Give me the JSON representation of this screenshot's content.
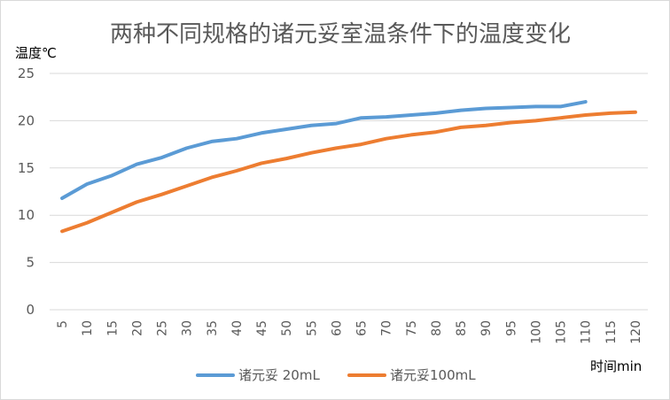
{
  "chart_data": {
    "type": "line",
    "title": "两种不同规格的诸元妥室温条件下的温度变化",
    "ylabel": "温度℃",
    "xlabel": "时间min",
    "ylim": [
      0,
      25
    ],
    "yticks": [
      0,
      5,
      10,
      15,
      20,
      25
    ],
    "categories": [
      "5",
      "10",
      "15",
      "20",
      "25",
      "30",
      "35",
      "40",
      "45",
      "50",
      "55",
      "60",
      "65",
      "70",
      "75",
      "80",
      "85",
      "90",
      "95",
      "100",
      "105",
      "110",
      "115",
      "120"
    ],
    "series": [
      {
        "name": "诸元妥 20mL",
        "color": "#5b9bd5",
        "values": [
          11.8,
          13.3,
          14.2,
          15.4,
          16.1,
          17.1,
          17.8,
          18.1,
          18.7,
          19.1,
          19.5,
          19.7,
          20.3,
          20.4,
          20.6,
          20.8,
          21.1,
          21.3,
          21.4,
          21.5,
          21.5,
          22.0,
          null,
          null
        ]
      },
      {
        "name": "诸元妥100mL",
        "color": "#ed7d31",
        "values": [
          8.3,
          9.2,
          10.3,
          11.4,
          12.2,
          13.1,
          14.0,
          14.7,
          15.5,
          16.0,
          16.6,
          17.1,
          17.5,
          18.1,
          18.5,
          18.8,
          19.3,
          19.5,
          19.8,
          20.0,
          20.3,
          20.6,
          20.8,
          20.9
        ]
      }
    ]
  }
}
